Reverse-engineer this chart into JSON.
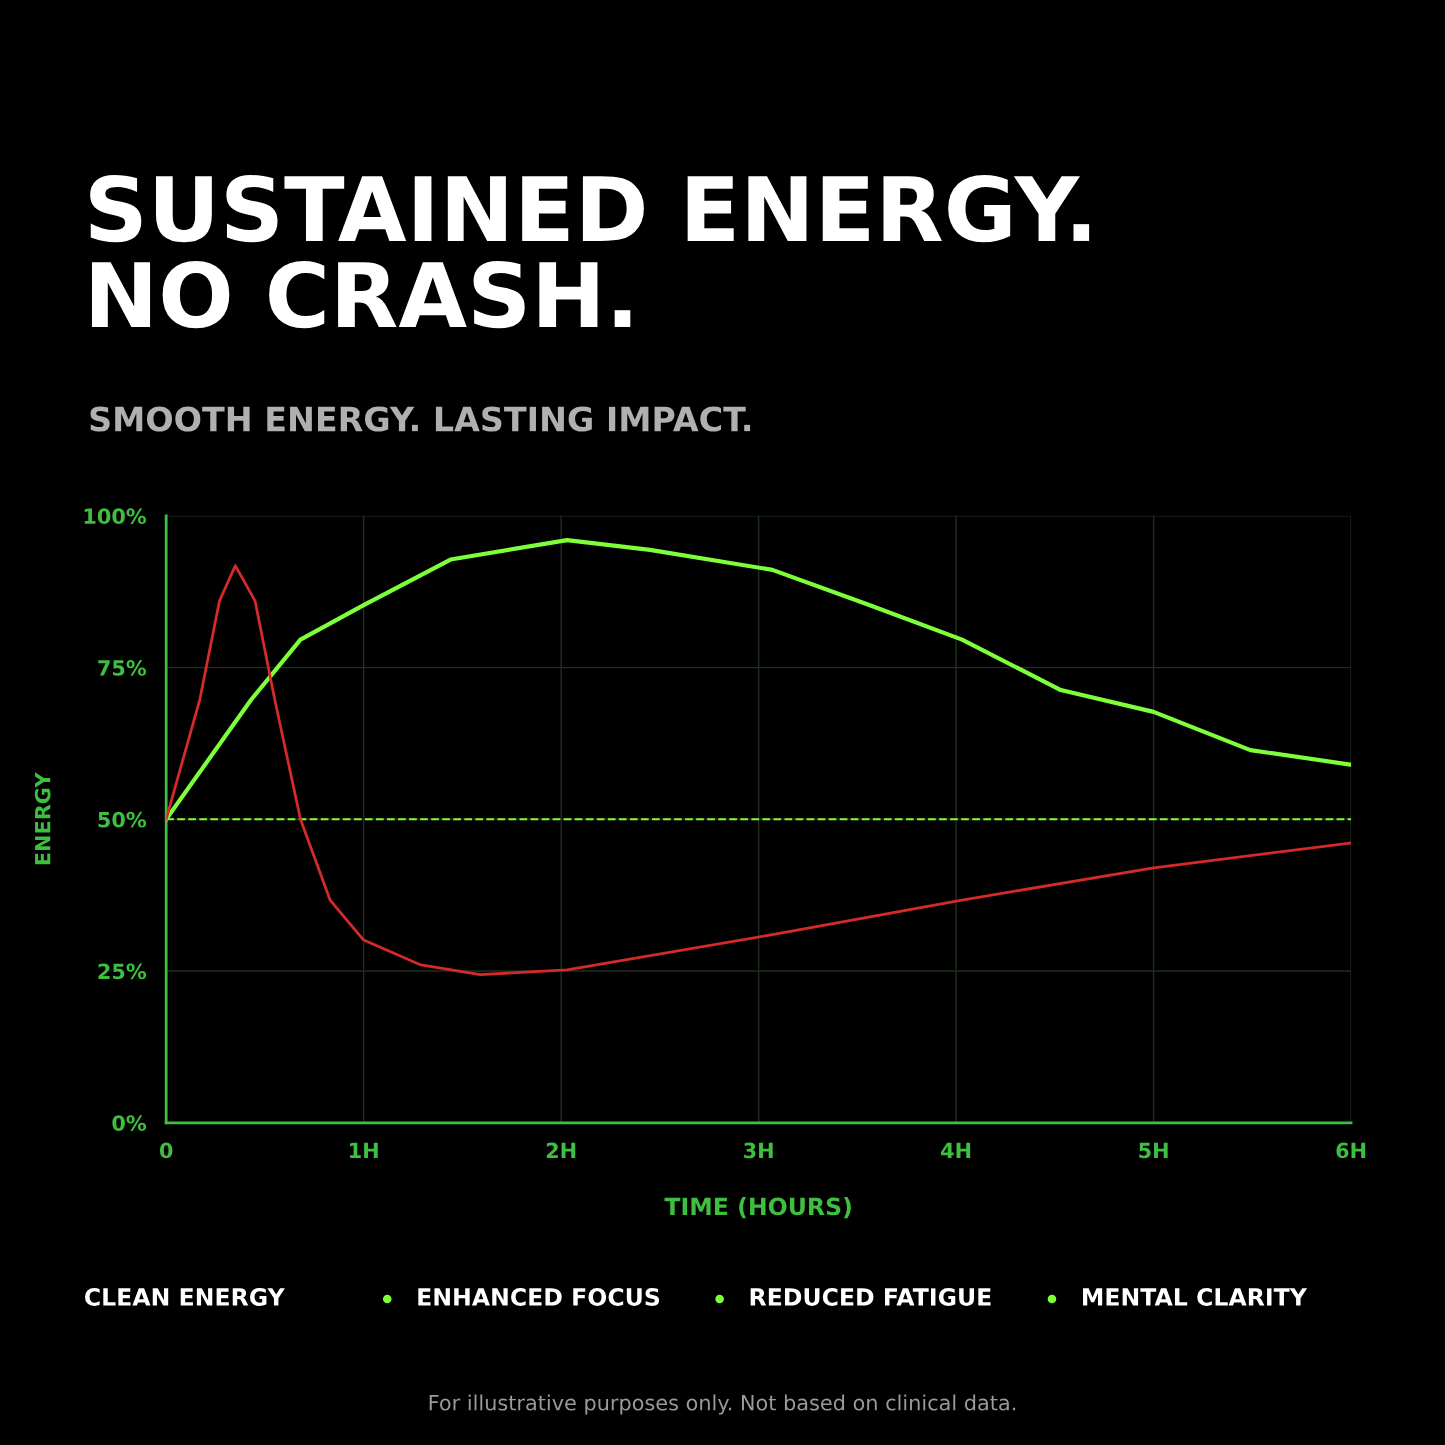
{
  "chart_data": {
    "type": "line",
    "title": "SUSTAINED ENERGY.\nNO CRASH.",
    "subtitle": "SMOOTH ENERGY. LASTING IMPACT.",
    "xlabel": "TIME (HOURS)",
    "ylabel": "ENERGY",
    "xlim": [
      0,
      6
    ],
    "ylim": [
      0,
      100
    ],
    "xticks": [
      {
        "value": 0,
        "label": "0"
      },
      {
        "value": 1,
        "label": "1H"
      },
      {
        "value": 2,
        "label": "2H"
      },
      {
        "value": 3,
        "label": "3H"
      },
      {
        "value": 4,
        "label": "4H"
      },
      {
        "value": 5,
        "label": "5H"
      },
      {
        "value": 6,
        "label": "6H"
      }
    ],
    "yticks": [
      {
        "value": 0,
        "label": "0%"
      },
      {
        "value": 25,
        "label": "25%"
      },
      {
        "value": 50,
        "label": "50%"
      },
      {
        "value": 75,
        "label": "75%"
      },
      {
        "value": 100,
        "label": "100%"
      }
    ],
    "grid": true,
    "legend": false,
    "marker": "none",
    "line_style": "solid",
    "series": [
      {
        "color": "#7dff3a",
        "x": [
          0,
          0.43,
          0.68,
          1,
          1.44,
          2.03,
          2.45,
          3.07,
          3.56,
          4.03,
          4.53,
          5.0,
          5.49,
          6.0
        ],
        "values": [
          50,
          69.7,
          79.6,
          85.3,
          92.8,
          96,
          94.4,
          91.1,
          85.3,
          79.6,
          71.3,
          67.7,
          61.4,
          59
        ]
      },
      {
        "color": "#d42a2a",
        "x": [
          0,
          0.17,
          0.27,
          0.35,
          0.45,
          0.55,
          0.68,
          0.83,
          1,
          1.29,
          1.59,
          2.03,
          3.07,
          4.03,
          5,
          6
        ],
        "values": [
          50,
          69.7,
          86,
          91.8,
          86,
          69.7,
          50,
          36.7,
          30.1,
          26,
          24.4,
          25.2,
          31,
          36.7,
          42,
          46.1
        ]
      }
    ],
    "ref_lines": [
      {
        "axis": "y",
        "value": 50,
        "color": "#7dff3a",
        "line_style": "dashed"
      }
    ],
    "annotations": [
      "CLEAN ENERGY",
      "ENHANCED FOCUS",
      "REDUCED FATIGUE",
      "MENTAL CLARITY",
      "For illustrative purposes only. Not based on clinical data."
    ]
  }
}
